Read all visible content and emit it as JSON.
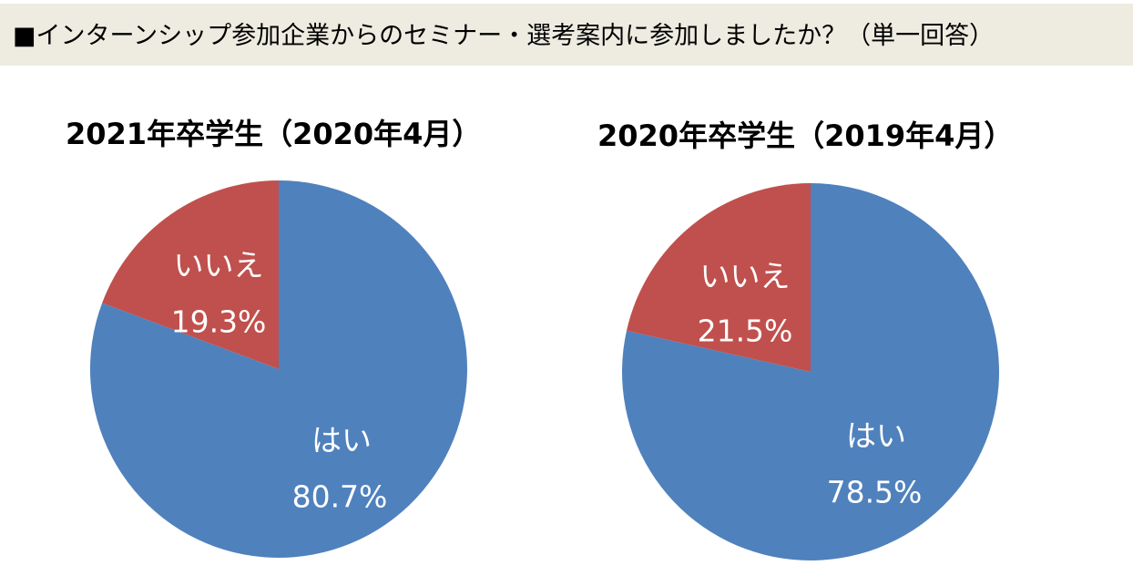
{
  "header": {
    "title": "■インターンシップ参加企業からのセミナー・選考案内に参加しましたか？（単一回答）",
    "background": "#eeece1"
  },
  "colors": {
    "yes": "#4f81bd",
    "no": "#c0504d",
    "label": "#ffffff"
  },
  "chart_data": [
    {
      "type": "pie",
      "title": "2021年卒学生（2020年4月）",
      "categories": [
        "はい",
        "いいえ"
      ],
      "values": [
        80.7,
        19.3
      ],
      "value_labels": [
        "80.7%",
        "19.3%"
      ],
      "start": "12 o'clock",
      "direction": "clockwise",
      "legend": "none"
    },
    {
      "type": "pie",
      "title": "2020年卒学生（2019年4月）",
      "categories": [
        "はい",
        "いいえ"
      ],
      "values": [
        78.5,
        21.5
      ],
      "value_labels": [
        "78.5%",
        "21.5%"
      ],
      "start": "12 o'clock",
      "direction": "clockwise",
      "legend": "none"
    }
  ]
}
